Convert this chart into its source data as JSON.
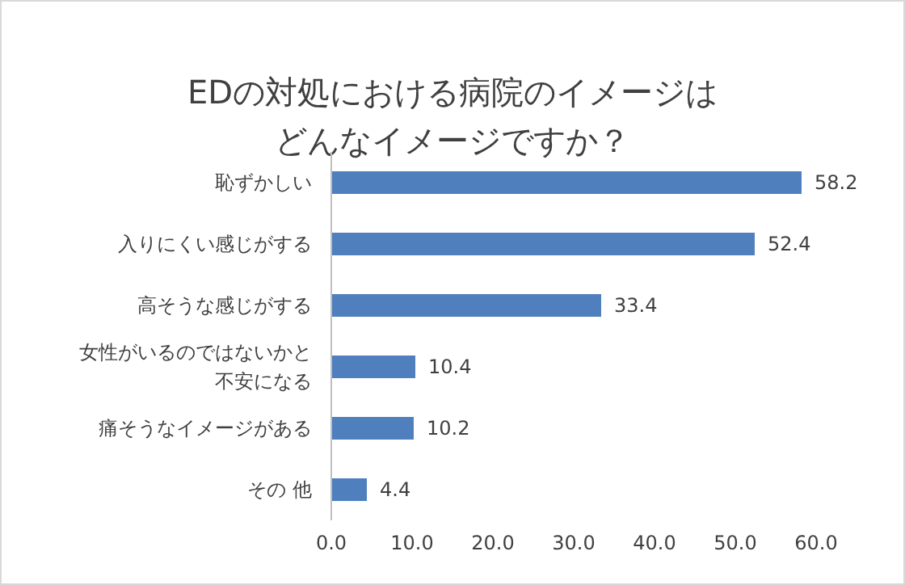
{
  "chart_data": {
    "type": "bar",
    "orientation": "horizontal",
    "title": "EDの対処における病院のイメージはどんなイメージですか？",
    "categories": [
      "恥ずかしい",
      "入りにくい感じがする",
      "高そうな感じがする",
      "女性がいるのではないかと不安になる",
      "痛そうなイメージがある",
      "その 他"
    ],
    "values": [
      58.2,
      52.4,
      33.4,
      10.4,
      10.2,
      4.4
    ],
    "color": "#4f7fbc",
    "xlim": [
      0,
      60
    ],
    "xticks": [
      {
        "value": 0,
        "label": "0.0"
      },
      {
        "value": 10,
        "label": "10.0"
      },
      {
        "value": 20,
        "label": "20.0"
      },
      {
        "value": 30,
        "label": "30.0"
      },
      {
        "value": 40,
        "label": "40.0"
      },
      {
        "value": 50,
        "label": "50.0"
      },
      {
        "value": 60,
        "label": "60.0"
      }
    ],
    "data_labels": true
  }
}
